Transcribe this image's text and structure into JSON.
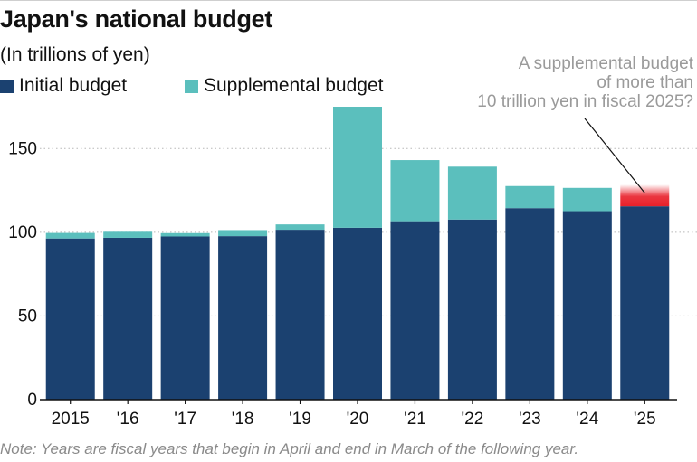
{
  "title": "Japan's national budget",
  "subtitle": "(In trillions of yen)",
  "legend": [
    {
      "label": "Initial budget",
      "color": "#1b4170"
    },
    {
      "label": "Supplemental budget",
      "color": "#5bbfbd"
    }
  ],
  "annotation": {
    "lines": [
      "A supplemental budget",
      "of more than",
      "10 trillion yen in fiscal 2025?"
    ]
  },
  "footnote": "Note: Years are fiscal years that begin in April and end in March of the following year.",
  "colors": {
    "initial": "#1b4170",
    "supplemental": "#5bbfbd",
    "highlight": "#e8202a"
  },
  "chart_data": {
    "type": "bar",
    "stacked": true,
    "title": "Japan's national budget",
    "ylabel": "In trillions of yen",
    "categories": [
      "2015",
      "'16",
      "'17",
      "'18",
      "'19",
      "'20",
      "'21",
      "'22",
      "'23",
      "'24",
      "'25"
    ],
    "series": [
      {
        "name": "Initial budget",
        "values": [
          96.3,
          96.7,
          97.5,
          97.7,
          101.5,
          102.7,
          106.6,
          107.6,
          114.4,
          112.6,
          115.5
        ]
      },
      {
        "name": "Supplemental budget",
        "values": [
          3.3,
          3.6,
          2.0,
          3.6,
          3.2,
          72.3,
          36.5,
          31.6,
          13.2,
          13.9,
          null
        ]
      }
    ],
    "projected": {
      "category": "'25",
      "min_extra": 10,
      "label": "A supplemental budget of more than 10 trillion yen in fiscal 2025?"
    },
    "yticks": [
      0,
      50,
      100,
      150
    ],
    "ylim": [
      0,
      175
    ],
    "grid": "dotted horizontal"
  }
}
